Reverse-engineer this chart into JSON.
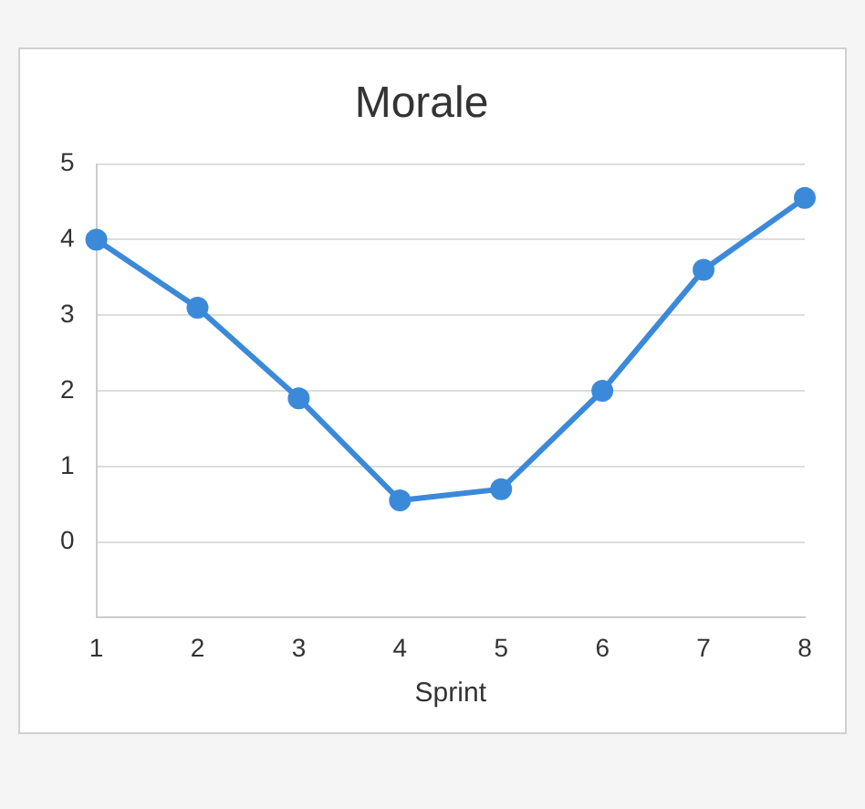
{
  "chart_data": {
    "type": "line",
    "title": "Morale",
    "xlabel": "Sprint",
    "x": [
      1,
      2,
      3,
      4,
      5,
      6,
      7,
      8
    ],
    "series": [
      {
        "color": "#3b8ad9",
        "values": [
          4.0,
          3.1,
          1.9,
          0.55,
          0.7,
          2.0,
          3.6,
          4.55
        ]
      }
    ],
    "xlim": [
      1,
      8
    ],
    "xticks": [
      1,
      2,
      3,
      4,
      5,
      6,
      7,
      8
    ],
    "ylim": [
      -1,
      5
    ],
    "yticks": [
      0,
      1,
      2,
      3,
      4,
      5
    ],
    "grid": "y",
    "legend": false,
    "marker": "circle",
    "line_style": "solid"
  }
}
